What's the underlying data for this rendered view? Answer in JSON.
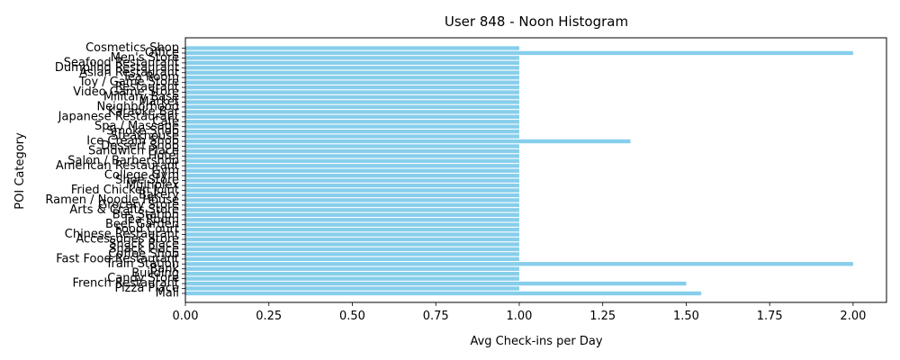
{
  "chart_data": {
    "type": "bar",
    "orientation": "horizontal",
    "title": "User 848 - Noon Histogram",
    "xlabel": "Avg Check-ins per Day",
    "ylabel": "POI Category",
    "xlim": [
      0,
      2.1
    ],
    "xticks": [
      "0.00",
      "0.25",
      "0.50",
      "0.75",
      "1.00",
      "1.25",
      "1.50",
      "1.75",
      "2.00"
    ],
    "bar_color": "#87CEEB",
    "grid": false,
    "categories": [
      "Cosmetics Shop",
      "Office",
      "Men's Store",
      "Seafood Restaurant",
      "Dumpling Restaurant",
      "Asian Restaurant",
      "Tea Room",
      "Toy / Game Store",
      "Restaurant",
      "Video Game Store",
      "Military Base",
      "Market",
      "Neighborhood",
      "Karaoke Bar",
      "Japanese Restaurant",
      "Café",
      "Spa / Massage",
      "Smoke Shop",
      "Steakhouse",
      "Ice Cream Shop",
      "Dessert Shop",
      "Sandwich Place",
      "Hotel",
      "Salon / Barbershop",
      "American Restaurant",
      "Gym",
      "College Gym",
      "Shoe Store",
      "Multiplex",
      "Fried Chicken Joint",
      "Bakery",
      "Ramen / Noodle House",
      "Grocery Store",
      "Arts & Crafts Store",
      "Bus Station",
      "Tea Room",
      "Beer Garden",
      "Food Court",
      "Chinese Restaurant",
      "Accessories Store",
      "Snack Place",
      "Snack Place",
      "Coffee Shop",
      "Fast Food Restaurant",
      "Train Station",
      "Bank",
      "Building",
      "Candy Store",
      "French Restaurant",
      "Pizza Place",
      "Mall"
    ],
    "values": [
      1,
      2,
      1,
      1,
      1,
      1,
      1,
      1,
      1,
      1,
      1,
      1,
      1,
      1,
      1,
      1,
      1,
      1,
      1,
      1.333,
      1,
      1,
      1,
      1,
      1,
      1,
      1,
      1,
      1,
      1,
      1,
      1,
      1,
      1,
      1,
      1,
      1,
      1,
      1,
      1,
      1,
      1,
      1,
      1,
      2,
      1,
      1,
      1,
      1.5,
      1,
      1.545
    ]
  }
}
